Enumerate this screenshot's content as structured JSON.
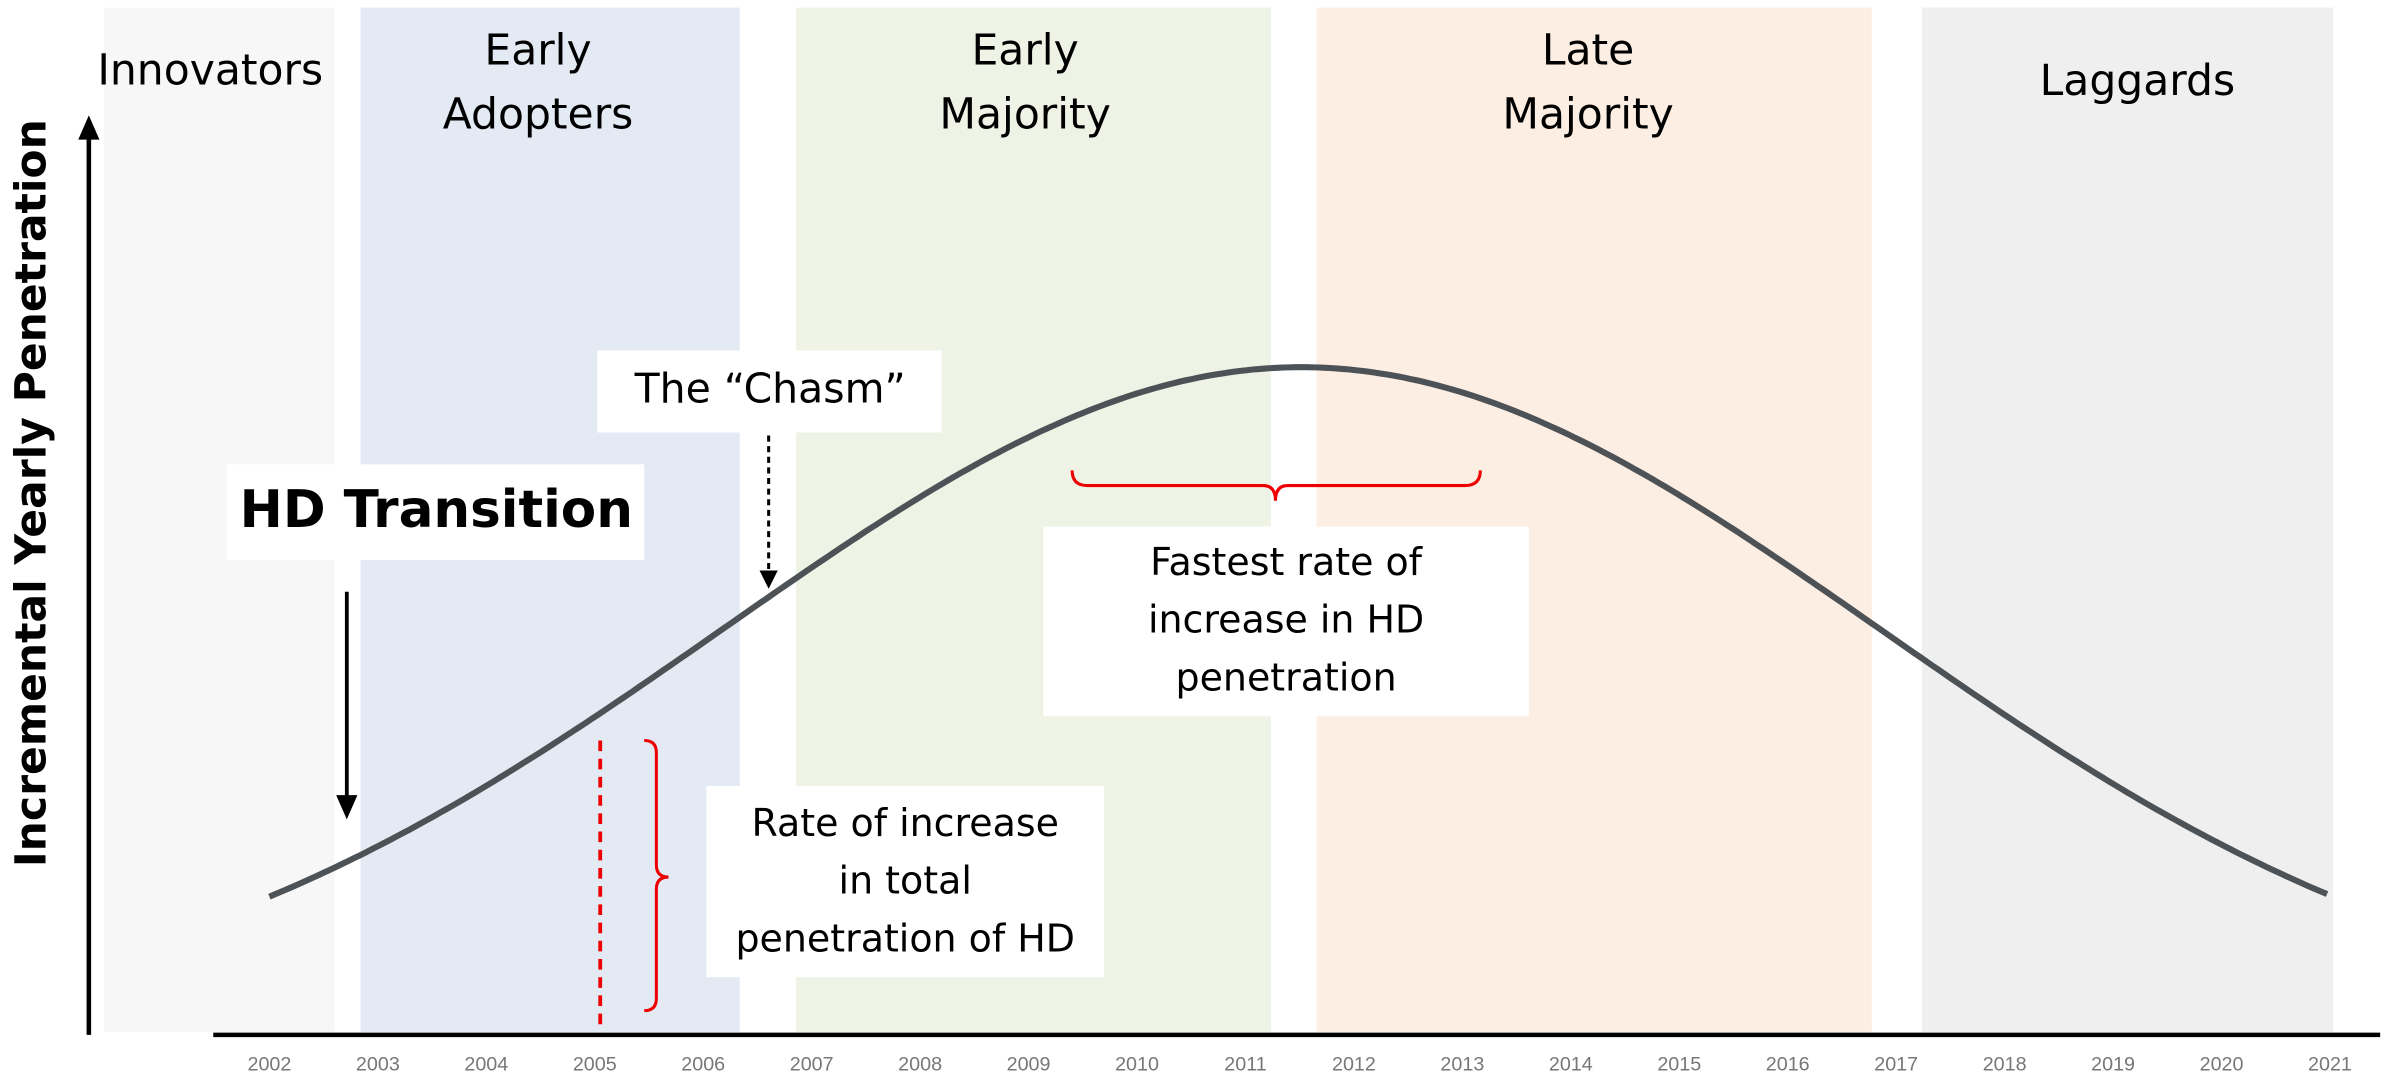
{
  "y_axis_label": "Incremental Yearly Penetration",
  "segments": [
    [
      "Innovators"
    ],
    [
      "Early",
      "Adopters"
    ],
    [
      "Early",
      "Majority"
    ],
    [
      "Late",
      "Majority"
    ],
    [
      "Laggards"
    ]
  ],
  "years": [
    "2002",
    "2003",
    "2004",
    "2005",
    "2006",
    "2007",
    "2008",
    "2009",
    "2010",
    "2011",
    "2012",
    "2013",
    "2014",
    "2015",
    "2016",
    "2017",
    "2018",
    "2019",
    "2020",
    "2021"
  ],
  "annotations": {
    "hd_transition": "HD Transition",
    "chasm": "The “Chasm”",
    "fastest": [
      "Fastest rate of",
      "increase in HD",
      "penetration"
    ],
    "rate": [
      "Rate of increase",
      "in total",
      "penetration of HD"
    ]
  }
}
